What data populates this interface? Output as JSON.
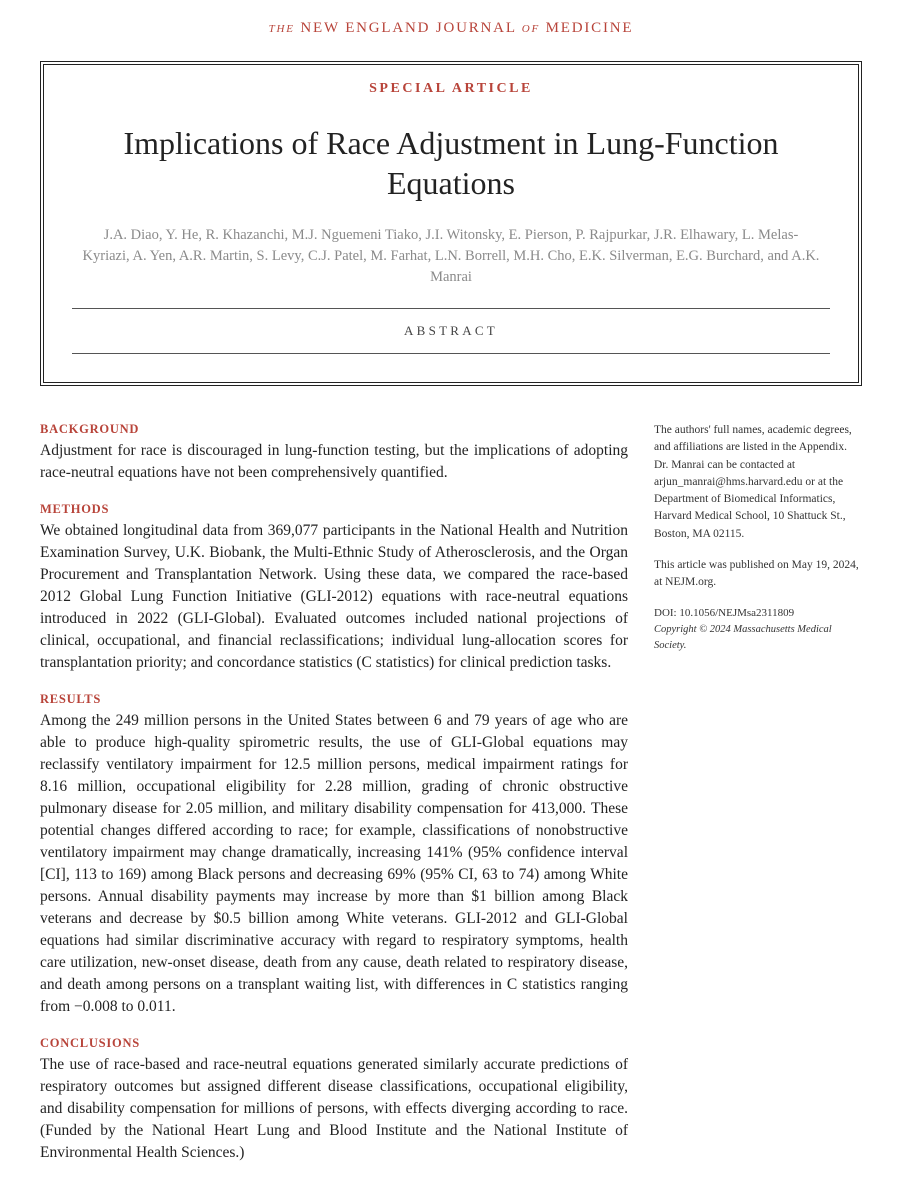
{
  "journal": {
    "the": "The",
    "name1": "NEW ENGLAND JOURNAL",
    "of": "of",
    "name2": "MEDICINE"
  },
  "article_type": "SPECIAL ARTICLE",
  "title": "Implications of Race Adjustment in Lung-Function Equations",
  "authors": "J.A. Diao, Y. He, R. Khazanchi, M.J. Nguemeni Tiako, J.I. Witonsky, E. Pierson, P. Rajpurkar, J.R. Elhawary, L. Melas-Kyriazi, A. Yen, A.R. Martin, S. Levy, C.J. Patel, M. Farhat, L.N. Borrell, M.H. Cho, E.K. Silverman, E.G. Burchard, and A.K. Manrai",
  "abstract_label": "ABSTRACT",
  "sections": {
    "background": {
      "head": "BACKGROUND",
      "body": "Adjustment for race is discouraged in lung-function testing, but the implications of adopting race-neutral equations have not been comprehensively quantified."
    },
    "methods": {
      "head": "METHODS",
      "body": "We obtained longitudinal data from 369,077 participants in the National Health and Nutrition Examination Survey, U.K. Biobank, the Multi-Ethnic Study of Atherosclerosis, and the Organ Procurement and Transplantation Network. Using these data, we compared the race-based 2012 Global Lung Function Initiative (GLI-2012) equations with race-neutral equations introduced in 2022 (GLI-Global). Evaluated outcomes included national projections of clinical, occupational, and financial reclassifications; individual lung-allocation scores for transplantation priority; and concordance statistics (C statistics) for clinical prediction tasks."
    },
    "results": {
      "head": "RESULTS",
      "body": "Among the 249 million persons in the United States between 6 and 79 years of age who are able to produce high-quality spirometric results, the use of GLI-Global equations may reclassify ventilatory impairment for 12.5 million persons, medical impairment ratings for 8.16 million, occupational eligibility for 2.28 million, grading of chronic obstructive pulmonary disease for 2.05 million, and military disability compensation for 413,000. These potential changes differed according to race; for example, classifications of nonobstructive ventilatory impairment may change dramatically, increasing 141% (95% confidence interval [CI], 113 to 169) among Black persons and decreasing 69% (95% CI, 63 to 74) among White persons. Annual disability payments may increase by more than $1 billion among Black veterans and decrease by $0.5 billion among White veterans. GLI-2012 and GLI-Global equations had similar discriminative accuracy with regard to respiratory symptoms, health care utilization, new-onset disease, death from any cause, death related to respiratory disease, and death among persons on a transplant waiting list, with differences in C statistics ranging from −0.008 to 0.011."
    },
    "conclusions": {
      "head": "CONCLUSIONS",
      "body": "The use of race-based and race-neutral equations generated similarly accurate predictions of respiratory outcomes but assigned different disease classifications, occupational eligibility, and disability compensation for millions of persons, with effects diverging according to race. (Funded by the National Heart Lung and Blood Institute and the National Institute of Environmental Health Sciences.)"
    }
  },
  "sidebar": {
    "affiliations": "The authors' full names, academic degrees, and affiliations are listed in the Appendix. Dr. Manrai can be contacted at arjun_manrai@hms.harvard.edu or at the Department of Biomedical Informatics, Harvard Medical School, 10 Shattuck St., Boston, MA 02115.",
    "pubnote": "This article was published on May 19, 2024, at NEJM.org.",
    "doi": "DOI: 10.1056/NEJMsa2311809",
    "copyright": "Copyright © 2024 Massachusetts Medical Society."
  },
  "colors": {
    "accent": "#b8443a",
    "text": "#222222",
    "muted": "#8a8a8a",
    "background": "#ffffff"
  }
}
